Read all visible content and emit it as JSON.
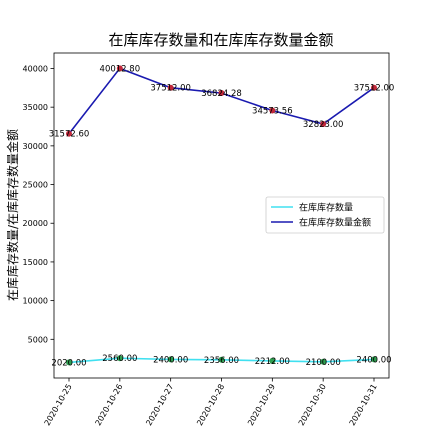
{
  "chart_data": {
    "type": "line",
    "title": "在库库存数量和在库库存数量金额",
    "xlabel": "",
    "ylabel": "在库库存数量/在库库存数量金额",
    "categories": [
      "2020-10-25",
      "2020-10-26",
      "2020-10-27",
      "2020-10-28",
      "2020-10-29",
      "2020-10-30",
      "2020-10-31"
    ],
    "ylim": [
      0,
      42000
    ],
    "yticks": [
      5000,
      10000,
      15000,
      20000,
      25000,
      30000,
      35000,
      40000
    ],
    "grid": false,
    "legend_position": "center-right",
    "series": [
      {
        "name": "在库库存数量",
        "color": "#40e0f0",
        "marker_color": "#2e9e4f",
        "values": [
          2020.0,
          2560.0,
          2400.0,
          2356.0,
          2212.0,
          2100.0,
          2400.0
        ],
        "labels": [
          "2020.00",
          "2560.00",
          "2400.00",
          "2356.00",
          "2212.00",
          "2100.00",
          "2400.00"
        ]
      },
      {
        "name": "在库库存数量金额",
        "color": "#1a1ab0",
        "marker_color": "#c0283a",
        "values": [
          31572.6,
          40012.8,
          37512.0,
          36824.28,
          34573.56,
          32823.0,
          37512.0
        ],
        "labels": [
          "31572.60",
          "40012.80",
          "37512.00",
          "36824.28",
          "34573.56",
          "32823.00",
          "37512.00"
        ]
      }
    ]
  }
}
